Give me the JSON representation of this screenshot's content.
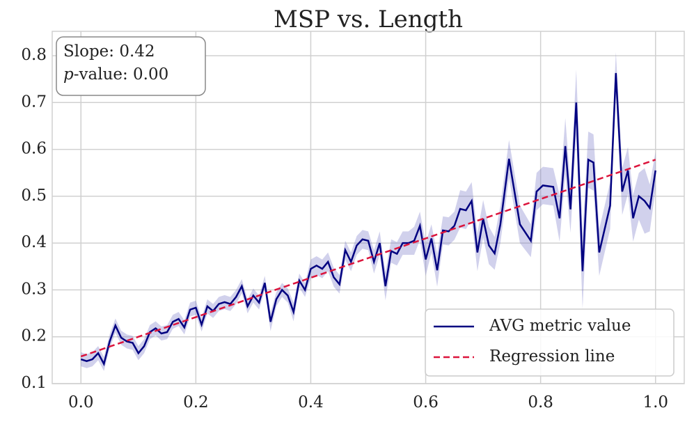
{
  "chart_data": {
    "type": "line",
    "title": "MSP vs. Length",
    "series": [
      {
        "name": "AVG metric value",
        "color": "#000080",
        "band_color": "#7b7bc8",
        "x": [
          0,
          0.01,
          0.02,
          0.03,
          0.04,
          0.05,
          0.06,
          0.07,
          0.08,
          0.09,
          0.1,
          0.11,
          0.12,
          0.13,
          0.14,
          0.15,
          0.16,
          0.17,
          0.18,
          0.19,
          0.2,
          0.21,
          0.22,
          0.23,
          0.24,
          0.25,
          0.26,
          0.27,
          0.28,
          0.29,
          0.3,
          0.31,
          0.32,
          0.33,
          0.34,
          0.35,
          0.36,
          0.37,
          0.38,
          0.39,
          0.4,
          0.41,
          0.42,
          0.43,
          0.44,
          0.45,
          0.46,
          0.47,
          0.48,
          0.49,
          0.5,
          0.51,
          0.52,
          0.53,
          0.54,
          0.55,
          0.56,
          0.57,
          0.58,
          0.59,
          0.6,
          0.61,
          0.62,
          0.63,
          0.64,
          0.65,
          0.66,
          0.67,
          0.68,
          0.69,
          0.7,
          0.71,
          0.72,
          0.73,
          0.745,
          0.764,
          0.783,
          0.793,
          0.804,
          0.822,
          0.833,
          0.843,
          0.852,
          0.862,
          0.873,
          0.883,
          0.892,
          0.902,
          0.921,
          0.931,
          0.942,
          0.952,
          0.961,
          0.971,
          0.981,
          0.99,
          1.0
        ],
        "values": [
          0.152,
          0.148,
          0.152,
          0.165,
          0.142,
          0.19,
          0.224,
          0.198,
          0.19,
          0.187,
          0.165,
          0.18,
          0.21,
          0.218,
          0.207,
          0.21,
          0.232,
          0.238,
          0.22,
          0.258,
          0.262,
          0.226,
          0.265,
          0.255,
          0.27,
          0.274,
          0.27,
          0.285,
          0.308,
          0.265,
          0.288,
          0.273,
          0.315,
          0.232,
          0.28,
          0.3,
          0.288,
          0.253,
          0.32,
          0.3,
          0.345,
          0.352,
          0.345,
          0.36,
          0.327,
          0.312,
          0.385,
          0.36,
          0.395,
          0.408,
          0.405,
          0.36,
          0.4,
          0.308,
          0.383,
          0.377,
          0.4,
          0.4,
          0.405,
          0.437,
          0.365,
          0.41,
          0.342,
          0.427,
          0.425,
          0.437,
          0.473,
          0.47,
          0.49,
          0.38,
          0.452,
          0.395,
          0.378,
          0.44,
          0.58,
          0.44,
          0.405,
          0.51,
          0.523,
          0.52,
          0.453,
          0.607,
          0.472,
          0.7,
          0.34,
          0.578,
          0.572,
          0.38,
          0.48,
          0.763,
          0.51,
          0.555,
          0.453,
          0.5,
          0.49,
          0.475,
          0.555
        ],
        "ci": [
          0.015,
          0.015,
          0.015,
          0.015,
          0.015,
          0.015,
          0.015,
          0.015,
          0.015,
          0.015,
          0.015,
          0.015,
          0.015,
          0.015,
          0.015,
          0.015,
          0.015,
          0.015,
          0.015,
          0.015,
          0.015,
          0.015,
          0.015,
          0.015,
          0.015,
          0.015,
          0.015,
          0.015,
          0.015,
          0.015,
          0.015,
          0.015,
          0.015,
          0.02,
          0.015,
          0.015,
          0.015,
          0.02,
          0.015,
          0.015,
          0.02,
          0.02,
          0.02,
          0.02,
          0.02,
          0.02,
          0.02,
          0.02,
          0.02,
          0.02,
          0.02,
          0.025,
          0.025,
          0.03,
          0.025,
          0.025,
          0.025,
          0.025,
          0.03,
          0.03,
          0.035,
          0.03,
          0.035,
          0.03,
          0.03,
          0.03,
          0.04,
          0.04,
          0.04,
          0.04,
          0.04,
          0.04,
          0.035,
          0.04,
          0.04,
          0.04,
          0.035,
          0.04,
          0.04,
          0.04,
          0.05,
          0.06,
          0.05,
          0.07,
          0.08,
          0.06,
          0.06,
          0.05,
          0.05,
          0.045,
          0.05,
          0.05,
          0.05,
          0.05,
          0.07,
          0.05,
          0.04
        ]
      },
      {
        "name": "Regression line",
        "color": "#dc143c",
        "dash": true,
        "x": [
          0,
          1
        ],
        "values": [
          0.158,
          0.578
        ]
      }
    ],
    "annotation": {
      "slope": "Slope: 0.42",
      "p_italic": "p",
      "p_rest": "-value: 0.00"
    },
    "xlim": [
      -0.05,
      1.05
    ],
    "ylim": [
      0.1,
      0.852
    ],
    "xticks": [
      {
        "value": 0,
        "label": "0.0"
      },
      0.2,
      0.4,
      0.6,
      0.8,
      {
        "value": 1,
        "label": "1.0"
      }
    ],
    "yticks": [
      0.1,
      0.2,
      0.3,
      0.4,
      0.5,
      0.6,
      0.7,
      0.8
    ],
    "grid": true,
    "legend": "lower right"
  }
}
